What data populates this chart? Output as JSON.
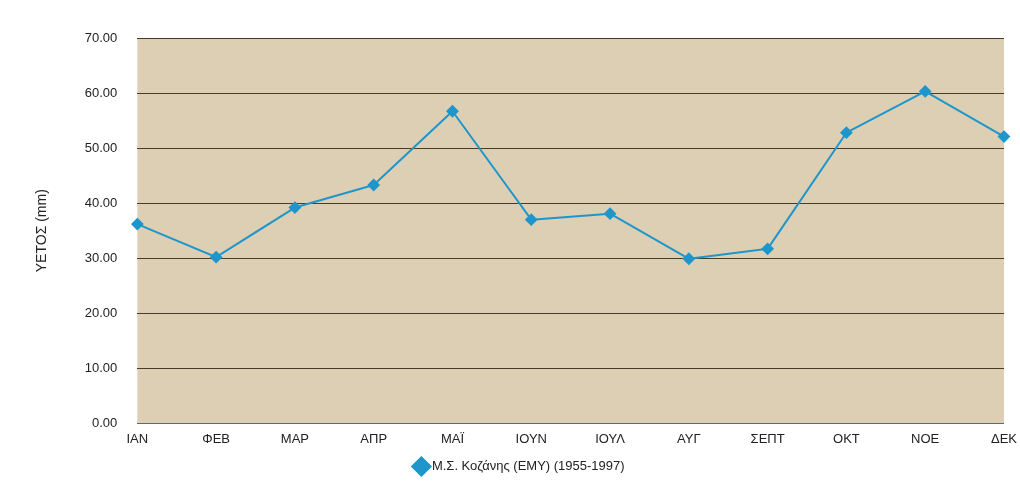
{
  "chart_data": {
    "type": "line",
    "ylabel": "ΥΕΤΟΣ (mm)",
    "categories": [
      "ΙΑΝ",
      "ΦΕΒ",
      "ΜΑΡ",
      "ΑΠΡ",
      "ΜΑΪ",
      "ΙΟΥΝ",
      "ΙΟΥΛ",
      "ΑΥΓ",
      "ΣΕΠΤ",
      "ΟΚΤ",
      "ΝΟΕ",
      "ΔΕΚ"
    ],
    "series": [
      {
        "name": "Μ.Σ. Κοζάνης (ΕΜΥ) (1955-1997)",
        "color": "#1e96cc",
        "values": [
          36.2,
          30.2,
          39.2,
          43.3,
          56.7,
          37.0,
          38.1,
          29.9,
          31.7,
          52.8,
          60.3,
          52.1
        ]
      }
    ],
    "ylim": [
      0,
      70
    ],
    "yticks": [
      {
        "value": 0,
        "label": "0.00"
      },
      {
        "value": 10,
        "label": "10.00"
      },
      {
        "value": 20,
        "label": "20.00"
      },
      {
        "value": 30,
        "label": "30.00"
      },
      {
        "value": 40,
        "label": "40.00"
      },
      {
        "value": 50,
        "label": "50.00"
      },
      {
        "value": 60,
        "label": "60.00"
      },
      {
        "value": 70,
        "label": "70.00"
      }
    ],
    "grid": "y",
    "legend": "bottom",
    "marker": "diamond",
    "line_style": "solid"
  }
}
